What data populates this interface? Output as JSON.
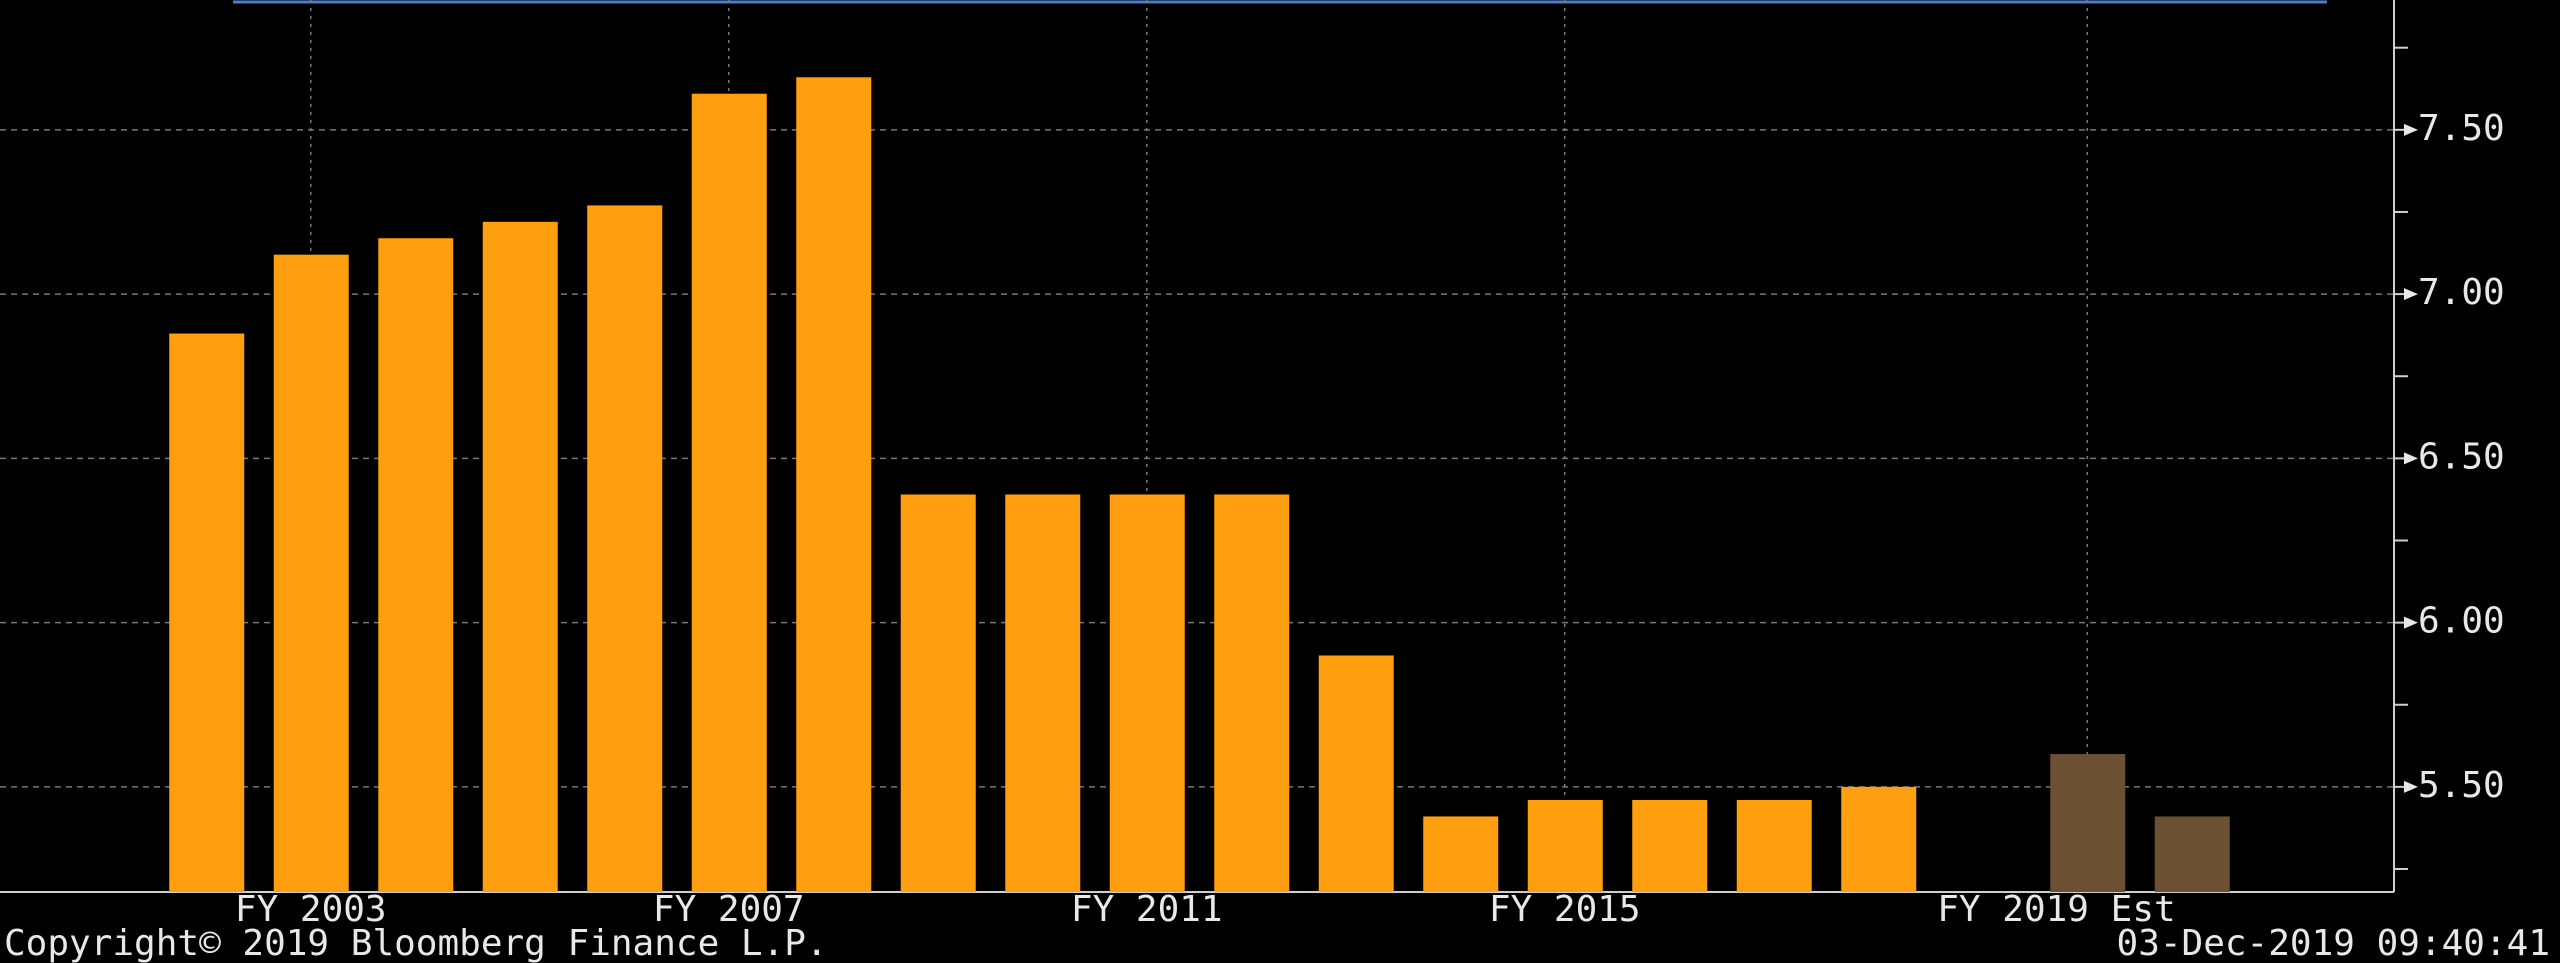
{
  "chart_data": {
    "type": "bar",
    "categories": [
      null,
      "FY 2003",
      null,
      null,
      null,
      "FY 2007",
      null,
      null,
      null,
      "FY 2011",
      null,
      null,
      null,
      "FY 2015",
      null,
      null,
      null,
      null,
      "FY 2019 Est",
      null
    ],
    "values": [
      6.88,
      7.12,
      7.17,
      7.22,
      7.27,
      7.61,
      7.66,
      6.39,
      6.39,
      6.39,
      6.39,
      5.9,
      5.41,
      5.46,
      5.46,
      5.46,
      5.5,
      null,
      5.6,
      5.41
    ],
    "colors": [
      "#ff9f10",
      "#ff9f10",
      "#ff9f10",
      "#ff9f10",
      "#ff9f10",
      "#ff9f10",
      "#ff9f10",
      "#ff9f10",
      "#ff9f10",
      "#ff9f10",
      "#ff9f10",
      "#ff9f10",
      "#ff9f10",
      "#ff9f10",
      "#ff9f10",
      "#ff9f10",
      "#ff9f10",
      "#ff9f10",
      "#6b5032",
      "#6b5032"
    ],
    "ylim": [
      5.18,
      7.88
    ],
    "yticks": [
      {
        "value": 5.5,
        "label": "5.50"
      },
      {
        "value": 6,
        "label": "6.00"
      },
      {
        "value": 6.5,
        "label": "6.50"
      },
      {
        "value": 7,
        "label": "7.00"
      },
      {
        "value": 7.5,
        "label": "7.50"
      }
    ],
    "minor_yticks": [
      5.25,
      5.75,
      6.25,
      6.75,
      7.25,
      7.75
    ],
    "grid": true,
    "copyright": "Copyright© 2019 Bloomberg Finance L.P.",
    "timestamp": "03-Dec-2019 09:40:41"
  }
}
